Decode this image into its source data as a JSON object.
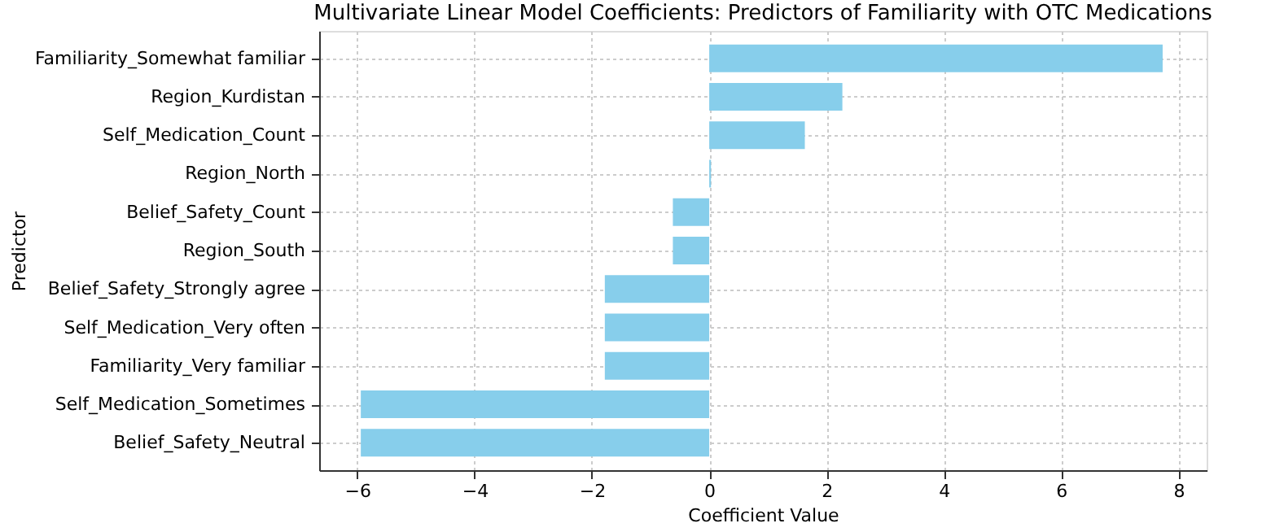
{
  "chart_data": {
    "type": "bar",
    "orientation": "horizontal",
    "title": "Multivariate Linear Model Coefficients: Predictors of Familiarity with OTC Medications",
    "xlabel": "Coefficient Value",
    "ylabel": "Predictor",
    "categories": [
      "Familiarity_Somewhat familiar",
      "Region_Kurdistan",
      "Self_Medication_Count",
      "Region_North",
      "Belief_Safety_Count",
      "Region_South",
      "Belief_Safety_Strongly agree",
      "Self_Medication_Very often",
      "Familiarity_Very familiar",
      "Self_Medication_Sometimes",
      "Belief_Safety_Neutral"
    ],
    "values": [
      7.73,
      2.27,
      1.63,
      0.03,
      -0.62,
      -0.62,
      -1.78,
      -1.78,
      -1.78,
      -5.94,
      -5.94
    ],
    "color": "#87ceeb",
    "xlim": [
      -6.65,
      8.48
    ],
    "xticks": [
      -6,
      -4,
      -2,
      0,
      2,
      4,
      6,
      8
    ],
    "grid": true
  }
}
